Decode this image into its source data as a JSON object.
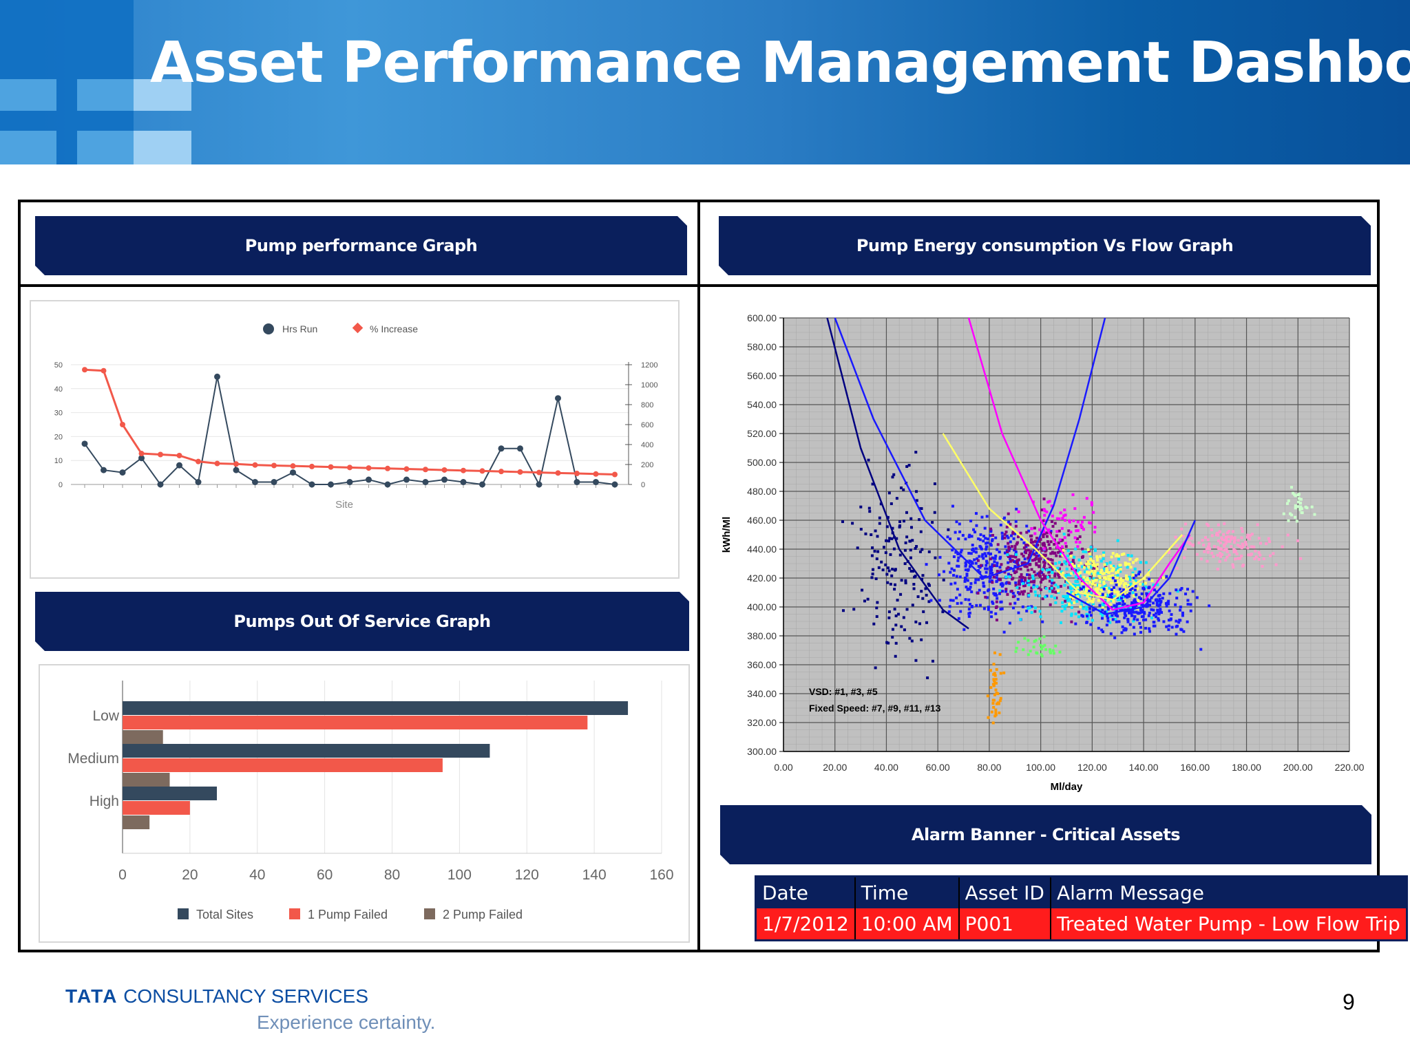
{
  "slide": {
    "title": "Asset Performance Management Dashboard",
    "page_number": "9"
  },
  "footer": {
    "company_brand": "TATA",
    "company_rest": "CONSULTANCY SERVICES",
    "tagline": "Experience certainty."
  },
  "panels": {
    "pump_performance_title": "Pump performance Graph",
    "pumps_out_of_service_title": "Pumps Out Of Service Graph",
    "energy_vs_flow_title": "Pump Energy consumption Vs Flow Graph",
    "alarm_banner_title": "Alarm Banner - Critical Assets"
  },
  "alarm_table": {
    "headers": [
      "Date",
      "Time",
      "Asset ID",
      "Alarm Message"
    ],
    "row": [
      "1/7/2012",
      "10:00 AM",
      "P001",
      "Treated Water Pump - Low Flow Trip"
    ]
  },
  "colors": {
    "banner": "#0a1f5c",
    "hrs_run": "#34495e",
    "pct_increase": "#f2584a",
    "two_pump": "#7d6a5e",
    "alarm_row": "#ff1c1c"
  },
  "chart_data": [
    {
      "type": "line",
      "legend": [
        "Hrs Run",
        "% Increase"
      ],
      "legend_position": "top-center",
      "xlabel": "Site",
      "y_left_ticks": [
        "50",
        "40",
        "30",
        "20",
        "10",
        "0"
      ],
      "y_left_lim": [
        0,
        50
      ],
      "y_right_ticks": [
        "1200",
        "1000",
        "800",
        "600",
        "400",
        "200",
        "0"
      ],
      "y_right_lim": [
        0,
        1200
      ],
      "grid": true,
      "series": [
        {
          "name": "Hrs Run",
          "axis": "left",
          "values": [
            17,
            6,
            5,
            11,
            0,
            8,
            1,
            45,
            6,
            1,
            1,
            5,
            0,
            0,
            1,
            2,
            0,
            2,
            1,
            2,
            1,
            0,
            15,
            15,
            0,
            36,
            1,
            1,
            0
          ]
        },
        {
          "name": "% Increase",
          "axis": "right",
          "values": [
            1150,
            1140,
            600,
            310,
            300,
            290,
            230,
            210,
            205,
            195,
            190,
            185,
            180,
            175,
            170,
            165,
            160,
            155,
            150,
            145,
            140,
            135,
            130,
            125,
            120,
            115,
            110,
            105,
            100
          ]
        }
      ]
    },
    {
      "type": "bar",
      "orientation": "horizontal",
      "categories": [
        "Low",
        "Medium",
        "High"
      ],
      "series": [
        {
          "name": "Total Sites",
          "values": [
            150,
            109,
            28
          ]
        },
        {
          "name": "1 Pump Failed",
          "values": [
            138,
            95,
            20
          ]
        },
        {
          "name": "2 Pump Failed",
          "values": [
            12,
            14,
            8
          ]
        }
      ],
      "x_ticks": [
        "0",
        "20",
        "40",
        "60",
        "80",
        "100",
        "120",
        "140",
        "160"
      ],
      "xlim": [
        0,
        160
      ],
      "legend_position": "bottom",
      "grid": true
    },
    {
      "type": "scatter",
      "xlabel": "Ml/day",
      "ylabel": "kWh/Ml",
      "xlim": [
        0,
        220
      ],
      "ylim": [
        300,
        600
      ],
      "x_ticks": [
        "0.00",
        "20.00",
        "40.00",
        "60.00",
        "80.00",
        "100.00",
        "120.00",
        "140.00",
        "160.00",
        "180.00",
        "200.00",
        "220.00"
      ],
      "y_ticks": [
        "600.00",
        "580.00",
        "560.00",
        "540.00",
        "520.00",
        "500.00",
        "480.00",
        "460.00",
        "440.00",
        "420.00",
        "400.00",
        "380.00",
        "360.00",
        "340.00",
        "320.00",
        "300.00"
      ],
      "annotation_lines": [
        "VSD: #1, #3, #5",
        "Fixed Speed: #7, #9, #11, #13"
      ],
      "grid": true,
      "clusters": [
        {
          "color": "#000080",
          "cx": 45,
          "cy": 430,
          "sx": 12,
          "sy": 45,
          "n": 160
        },
        {
          "color": "#1a1aff",
          "cx": 80,
          "cy": 425,
          "sx": 14,
          "sy": 25,
          "n": 320
        },
        {
          "color": "#800080",
          "cx": 100,
          "cy": 430,
          "sx": 14,
          "sy": 22,
          "n": 320
        },
        {
          "color": "#00e5ff",
          "cx": 118,
          "cy": 415,
          "sx": 18,
          "sy": 18,
          "n": 260
        },
        {
          "color": "#ffff66",
          "cx": 125,
          "cy": 420,
          "sx": 12,
          "sy": 14,
          "n": 220
        },
        {
          "color": "#1a1aff",
          "cx": 138,
          "cy": 400,
          "sx": 15,
          "sy": 14,
          "n": 260
        },
        {
          "color": "#ff99cc",
          "cx": 172,
          "cy": 442,
          "sx": 14,
          "sy": 10,
          "n": 150
        },
        {
          "color": "#66ff66",
          "cx": 100,
          "cy": 372,
          "sx": 6,
          "sy": 6,
          "n": 30
        },
        {
          "color": "#ff9900",
          "cx": 82,
          "cy": 342,
          "sx": 2,
          "sy": 14,
          "n": 40
        },
        {
          "color": "#ff00ff",
          "cx": 110,
          "cy": 460,
          "sx": 10,
          "sy": 15,
          "n": 60
        },
        {
          "color": "#ccffcc",
          "cx": 200,
          "cy": 470,
          "sx": 4,
          "sy": 10,
          "n": 30
        }
      ],
      "curves": [
        {
          "color": "#000080",
          "points": [
            [
              17,
              600
            ],
            [
              30,
              510
            ],
            [
              45,
              440
            ],
            [
              62,
              398
            ],
            [
              72,
              385
            ]
          ]
        },
        {
          "color": "#1a1aff",
          "points": [
            [
              20,
              600
            ],
            [
              35,
              530
            ],
            [
              55,
              460
            ],
            [
              78,
              420
            ],
            [
              95,
              430
            ],
            [
              105,
              470
            ],
            [
              115,
              530
            ],
            [
              125,
              600
            ]
          ]
        },
        {
          "color": "#ff00ff",
          "points": [
            [
              72,
              600
            ],
            [
              85,
              520
            ],
            [
              100,
              460
            ],
            [
              115,
              420
            ],
            [
              128,
              398
            ],
            [
              140,
              403
            ],
            [
              150,
              430
            ],
            [
              158,
              450
            ]
          ]
        },
        {
          "color": "#ffff66",
          "points": [
            [
              62,
              520
            ],
            [
              80,
              468
            ],
            [
              98,
              440
            ],
            [
              115,
              410
            ],
            [
              128,
              405
            ],
            [
              140,
              420
            ],
            [
              155,
              450
            ]
          ]
        },
        {
          "color": "#1a1aff",
          "points": [
            [
              110,
              410
            ],
            [
              125,
              395
            ],
            [
              140,
              400
            ],
            [
              150,
              420
            ],
            [
              160,
              460
            ]
          ]
        }
      ]
    }
  ]
}
